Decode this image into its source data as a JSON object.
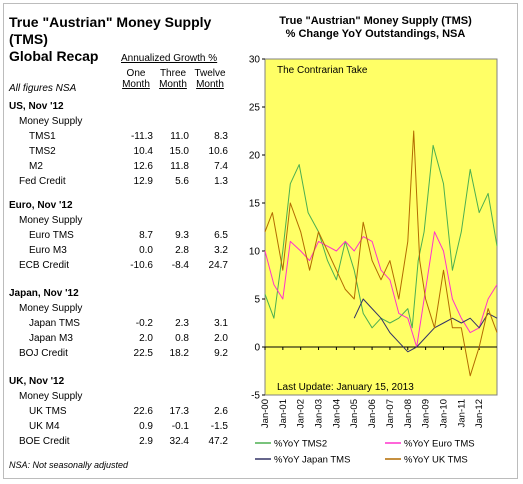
{
  "table": {
    "title_line1": "True \"Austrian\" Money Supply (TMS)",
    "title_line2": "Global Recap",
    "header": "Annualized Growth %",
    "all_figures": "All figures NSA",
    "col1": [
      "One",
      "Month"
    ],
    "col2": [
      "Three",
      "Month"
    ],
    "col3": [
      "Twelve",
      "Month"
    ],
    "sections": [
      {
        "title": "US, Nov '12",
        "sub": "Money Supply",
        "rows": [
          {
            "label": "TMS1",
            "v": [
              "-11.3",
              "11.0",
              "8.3"
            ]
          },
          {
            "label": "TMS2",
            "v": [
              "10.4",
              "15.0",
              "10.6"
            ]
          },
          {
            "label": "M2",
            "v": [
              "12.6",
              "11.8",
              "7.4"
            ]
          }
        ],
        "credit": {
          "label": "Fed Credit",
          "v": [
            "12.9",
            "5.6",
            "1.3"
          ]
        }
      },
      {
        "title": "Euro, Nov '12",
        "sub": "Money Supply",
        "rows": [
          {
            "label": "Euro TMS",
            "v": [
              "8.7",
              "9.3",
              "6.5"
            ]
          },
          {
            "label": "Euro M3",
            "v": [
              "0.0",
              "2.8",
              "3.2"
            ]
          }
        ],
        "credit": {
          "label": "ECB Credit",
          "v": [
            "-10.6",
            "-8.4",
            "24.7"
          ]
        }
      },
      {
        "title": "Japan, Nov '12",
        "sub": "Money Supply",
        "rows": [
          {
            "label": "Japan TMS",
            "v": [
              "-0.2",
              "2.3",
              "3.1"
            ]
          },
          {
            "label": "Japan M3",
            "v": [
              "2.0",
              "0.8",
              "2.0"
            ]
          }
        ],
        "credit": {
          "label": "BOJ Credit",
          "v": [
            "22.5",
            "18.2",
            "9.2"
          ]
        }
      },
      {
        "title": "UK, Nov '12",
        "sub": "Money Supply",
        "rows": [
          {
            "label": "UK TMS",
            "v": [
              "22.6",
              "17.3",
              "2.6"
            ]
          },
          {
            "label": "UK M4",
            "v": [
              "0.9",
              "-0.1",
              "-1.5"
            ]
          }
        ],
        "credit": {
          "label": "BOE Credit",
          "v": [
            "2.9",
            "32.4",
            "47.2"
          ]
        }
      }
    ],
    "footnote": "NSA: Not seasonally adjusted"
  },
  "chart_data": {
    "type": "line",
    "title": "True \"Austrian\" Money Supply (TMS)",
    "subtitle": "% Change YoY Outstandings, NSA",
    "annotation_top": "The Contrarian Take",
    "annotation_bottom": "Last Update: January 15, 2013",
    "ylim": [
      -5,
      30
    ],
    "yticks": [
      -5,
      0,
      5,
      10,
      15,
      20,
      25,
      30
    ],
    "xlim": [
      "2000-01",
      "2013-01"
    ],
    "xticks": [
      "Jan-00",
      "Jan-01",
      "Jan-02",
      "Jan-03",
      "Jan-04",
      "Jan-05",
      "Jan-06",
      "Jan-07",
      "Jan-08",
      "Jan-09",
      "Jan-10",
      "Jan-11",
      "Jan-12"
    ],
    "legend_position": "bottom",
    "plot_background": "#ffff66",
    "series": [
      {
        "name": "%YoY TMS2",
        "color": "#4caf50",
        "x": [
          "2000-01",
          "2000-07",
          "2001-01",
          "2001-06",
          "2001-12",
          "2002-06",
          "2003-01",
          "2003-07",
          "2004-01",
          "2004-07",
          "2005-01",
          "2005-07",
          "2006-01",
          "2006-07",
          "2007-01",
          "2007-07",
          "2008-01",
          "2008-04",
          "2008-08",
          "2008-12",
          "2009-06",
          "2010-01",
          "2010-07",
          "2011-01",
          "2011-07",
          "2012-01",
          "2012-07",
          "2013-01"
        ],
        "y": [
          5.5,
          3,
          10,
          17,
          19,
          14,
          12,
          9,
          7,
          11,
          8,
          3.5,
          2,
          3,
          2.5,
          3,
          4,
          2,
          9,
          12,
          21,
          17,
          8,
          12,
          18.5,
          14,
          16,
          10.5
        ]
      },
      {
        "name": "%YoY Euro TMS",
        "color": "#ff33cc",
        "x": [
          "2000-01",
          "2000-07",
          "2001-01",
          "2001-06",
          "2002-01",
          "2002-07",
          "2003-01",
          "2003-07",
          "2004-01",
          "2004-07",
          "2005-01",
          "2005-07",
          "2006-01",
          "2006-07",
          "2007-01",
          "2007-07",
          "2008-01",
          "2008-07",
          "2009-01",
          "2009-07",
          "2010-01",
          "2010-07",
          "2011-01",
          "2011-07",
          "2012-01",
          "2012-07",
          "2013-01"
        ],
        "y": [
          10,
          6.5,
          5,
          11,
          10,
          9,
          11,
          10.5,
          10,
          11,
          10,
          11.5,
          11,
          8,
          7,
          3.5,
          3,
          0,
          6,
          12,
          10,
          5,
          3,
          1.5,
          2,
          5,
          6.5
        ]
      },
      {
        "name": "%YoY Japan TMS",
        "color": "#333366",
        "x": [
          "2005-01",
          "2005-07",
          "2006-01",
          "2006-07",
          "2007-01",
          "2007-07",
          "2008-01",
          "2008-07",
          "2009-01",
          "2009-07",
          "2010-01",
          "2010-07",
          "2011-01",
          "2011-07",
          "2012-01",
          "2012-07",
          "2013-01"
        ],
        "y": [
          3,
          5,
          4,
          3,
          1.5,
          0.5,
          -0.5,
          0,
          1,
          2,
          2.5,
          3,
          2.5,
          3,
          2,
          3.5,
          3
        ]
      },
      {
        "name": "%YoY UK TMS",
        "color": "#b36b00",
        "x": [
          "2000-01",
          "2000-06",
          "2001-01",
          "2001-06",
          "2002-01",
          "2002-07",
          "2003-01",
          "2003-07",
          "2004-01",
          "2004-07",
          "2005-01",
          "2005-07",
          "2006-01",
          "2006-07",
          "2007-01",
          "2007-07",
          "2008-01",
          "2008-05",
          "2008-09",
          "2009-01",
          "2009-07",
          "2010-01",
          "2010-07",
          "2011-01",
          "2011-07",
          "2012-01",
          "2012-07",
          "2013-01"
        ],
        "y": [
          12,
          14,
          8,
          15,
          12,
          8,
          12,
          10,
          8,
          6,
          5,
          13,
          9,
          7,
          9,
          5,
          11,
          22.5,
          9,
          5,
          2,
          8,
          2,
          2,
          -3,
          0,
          4,
          1.5
        ]
      }
    ]
  }
}
